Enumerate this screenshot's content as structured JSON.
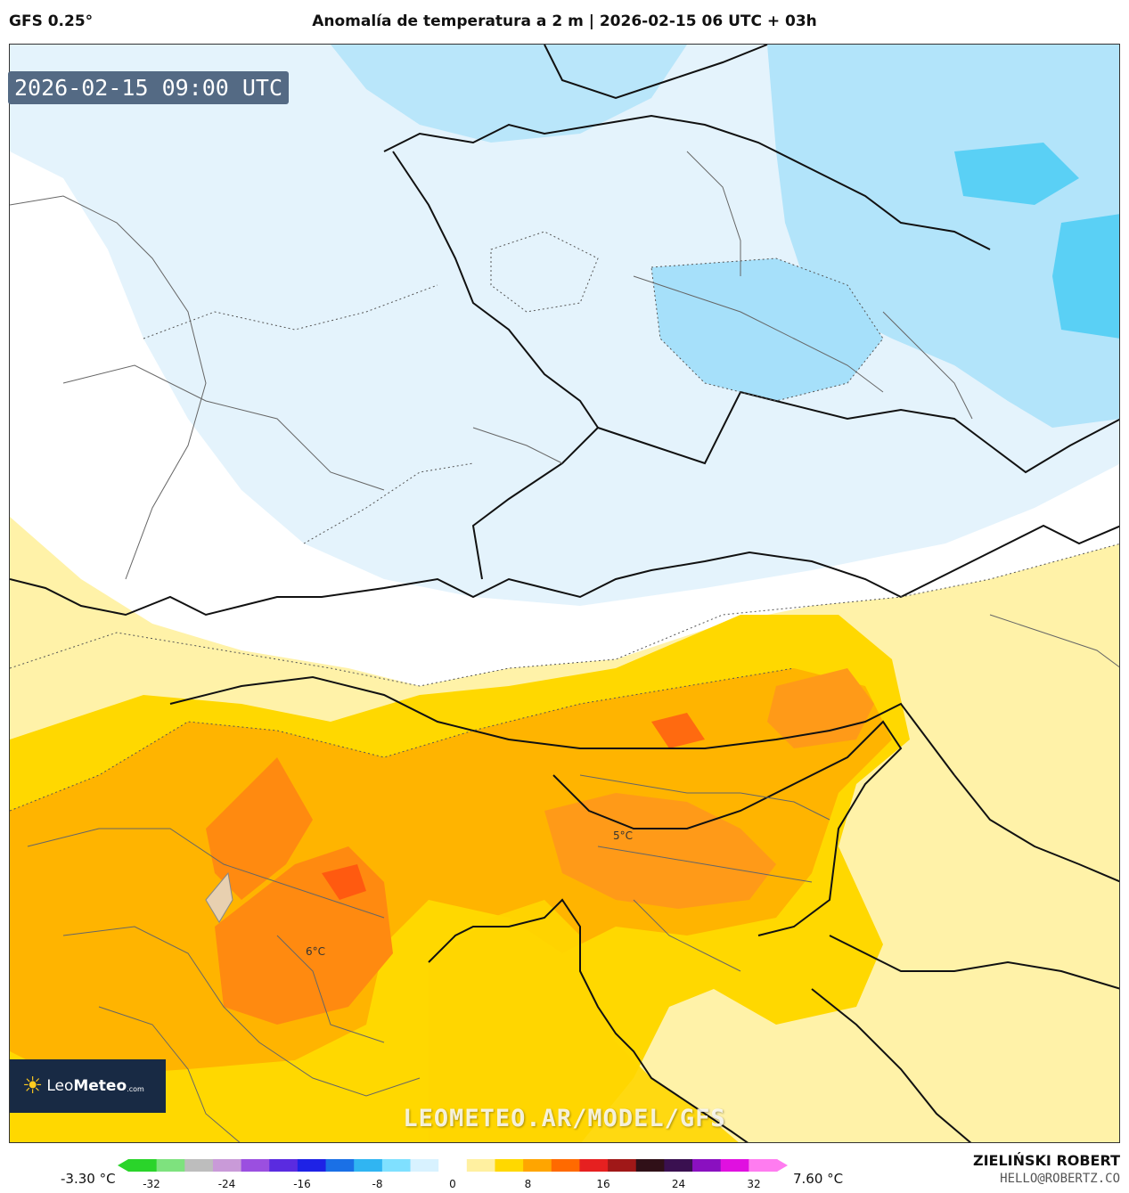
{
  "header": {
    "model": "GFS 0.25°",
    "title": "Anomalía de temperatura a 2 m | 2026-02-15 06 UTC + 03h"
  },
  "map": {
    "valid_time": "2026-02-15 09:00 UTC",
    "labels": [
      "5°C",
      "6°C"
    ],
    "watermark": "LEOMETEO.AR/MODEL/GFS",
    "logo": {
      "brand_light": "Leo",
      "brand_bold": "Meteo",
      "suffix": ".com",
      "icon": "sun-icon"
    }
  },
  "colorbar": {
    "min_label": "-3.30 °C",
    "max_label": "7.60 °C",
    "ticks": [
      "-32",
      "-24",
      "-16",
      "-8",
      "0",
      "8",
      "16",
      "24",
      "32"
    ],
    "colors": [
      "#2ad42a",
      "#7ee27e",
      "#bdbdbd",
      "#c99ad8",
      "#9b4fe0",
      "#5a2be0",
      "#1e22e6",
      "#1a70e6",
      "#30b5f2",
      "#7fe0ff",
      "#d8f2ff",
      "#ffffff",
      "#fff0a0",
      "#ffd800",
      "#ffa500",
      "#ff6a00",
      "#e62020",
      "#a01818",
      "#301018",
      "#3a1050",
      "#8a10c0",
      "#e010e0",
      "#ff7cf0"
    ]
  },
  "credits": {
    "author": "ZIELIŃSKI ROBERT",
    "email": "HELLO@ROBERTZ.CO"
  }
}
